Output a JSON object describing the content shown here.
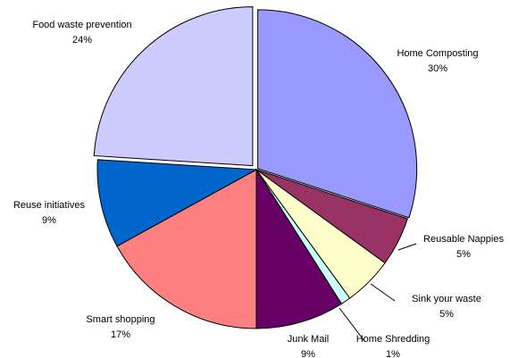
{
  "chart_data": {
    "type": "pie",
    "categories": [
      "Home Composting",
      "Reusable Nappies",
      "Sink your waste",
      "Home Shredding",
      "Junk Mail",
      "Smart shopping",
      "Reuse initiatives",
      "Food waste prevention"
    ],
    "values": [
      30,
      5,
      5,
      1,
      9,
      17,
      9,
      24
    ],
    "value_labels": [
      "30%",
      "5%",
      "5%",
      "1%",
      "9%",
      "17%",
      "9%",
      "24%"
    ],
    "colors": [
      "#9999ff",
      "#993366",
      "#ffffcc",
      "#ccffff",
      "#660066",
      "#ff8080",
      "#0066cc",
      "#ccccff"
    ]
  }
}
